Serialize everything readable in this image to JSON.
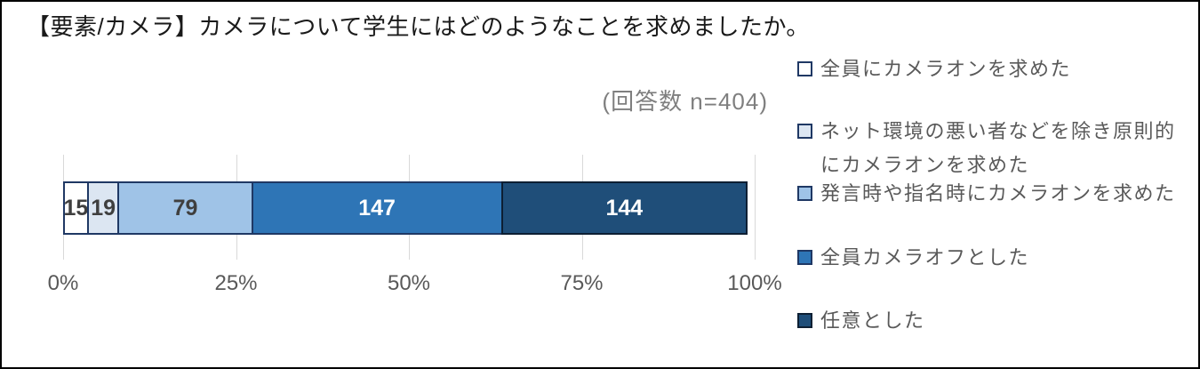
{
  "title": "【要素/カメラ】カメラについて学生にはどのようなことを求めましたか。",
  "subtitle": "(回答数 n=404)",
  "chart_data": {
    "type": "bar",
    "stacked": true,
    "orientation": "horizontal",
    "total": 404,
    "x_axis": {
      "tick_labels": [
        "0%",
        "25%",
        "50%",
        "75%",
        "100%"
      ],
      "range_percent": [
        0,
        100
      ],
      "grid": true
    },
    "legend_position": "right",
    "series": [
      {
        "name": "全員にカメラオンを求めた",
        "value": 15,
        "fill": "#ffffff",
        "border": "#1f3864",
        "label_color": "#3f3f3f"
      },
      {
        "name": "ネット環境の悪い者などを除き原則的にカメラオンを求めた",
        "value": 19,
        "fill": "#dce6f2",
        "border": "#1f3864",
        "label_color": "#3f3f3f"
      },
      {
        "name": "発言時や指名時にカメラオンを求めた",
        "value": 79,
        "fill": "#9fc3e7",
        "border": "#1f3864",
        "label_color": "#3f3f3f"
      },
      {
        "name": "全員カメラオフとした",
        "value": 147,
        "fill": "#2e75b6",
        "border": "#1f3864",
        "label_color": "#ffffff"
      },
      {
        "name": "任意とした",
        "value": 144,
        "fill": "#1f4e79",
        "border": "#0d1f33",
        "label_color": "#ffffff"
      }
    ]
  },
  "colors": {
    "gridline": "#d9d9d9",
    "axis_text": "#595959",
    "legend_text": "#595959",
    "subtitle_text": "#7f7f7f",
    "title_text": "#1a1a1a",
    "frame_border": "#000000",
    "background": "#ffffff"
  }
}
